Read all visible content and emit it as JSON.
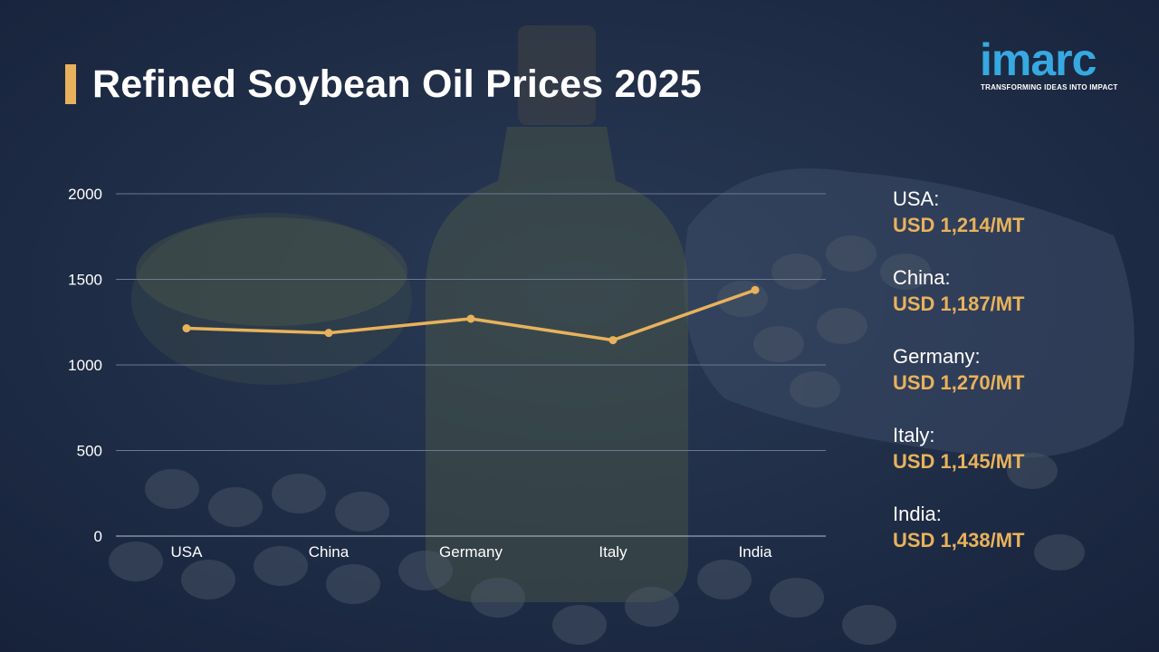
{
  "header": {
    "title": "Refined Soybean Oil Prices 2025"
  },
  "logo": {
    "name": "imarc",
    "tagline": "TRANSFORMING IDEAS INTO IMPACT"
  },
  "colors": {
    "accent": "#e8b25c",
    "logo": "#36a9e1",
    "background": "#1b2a47"
  },
  "chart_data": {
    "type": "line",
    "categories": [
      "USA",
      "China",
      "Germany",
      "Italy",
      "India"
    ],
    "values": [
      1214,
      1187,
      1270,
      1145,
      1438
    ],
    "ylim": [
      0,
      2000
    ],
    "yticks": [
      0,
      500,
      1000,
      1500,
      2000
    ],
    "grid": true,
    "legend_placement": "right"
  },
  "legend": [
    {
      "country": "USA:",
      "value": "USD 1,214/MT"
    },
    {
      "country": "China:",
      "value": "USD 1,187/MT"
    },
    {
      "country": "Germany:",
      "value": "USD 1,270/MT"
    },
    {
      "country": "Italy:",
      "value": "USD 1,145/MT"
    },
    {
      "country": "India:",
      "value": "USD 1,438/MT"
    }
  ]
}
